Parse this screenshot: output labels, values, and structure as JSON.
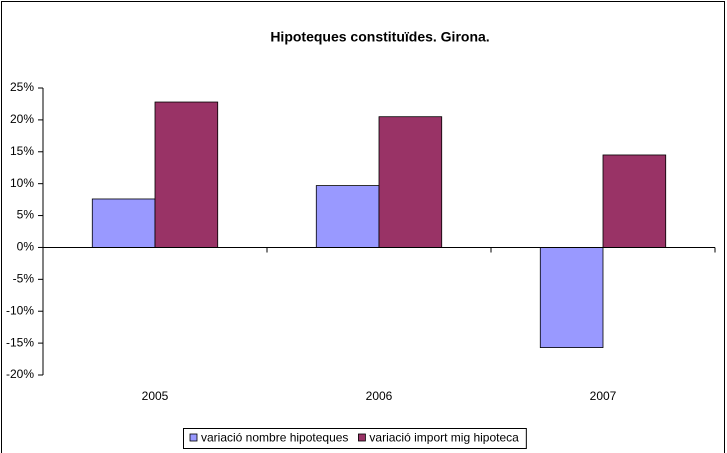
{
  "chart_data": {
    "type": "bar",
    "title": "Hipoteques constituïdes. Girona.",
    "categories": [
      "2005",
      "2006",
      "2007"
    ],
    "series": [
      {
        "name": "variació nombre hipoteques",
        "color": "#9999ff",
        "values": [
          7.6,
          9.7,
          -15.7
        ]
      },
      {
        "name": "variació import mig hipoteca",
        "color": "#993366",
        "values": [
          22.8,
          20.5,
          14.5
        ]
      }
    ],
    "ylim": [
      -20,
      25
    ],
    "yticks": [
      {
        "value": -20,
        "label": "-20%"
      },
      {
        "value": -15,
        "label": "-15%"
      },
      {
        "value": -10,
        "label": "-10%"
      },
      {
        "value": -5,
        "label": "-5%"
      },
      {
        "value": 0,
        "label": "0%"
      },
      {
        "value": 5,
        "label": "5%"
      },
      {
        "value": 10,
        "label": "10%"
      },
      {
        "value": 15,
        "label": "15%"
      },
      {
        "value": 20,
        "label": "20%"
      },
      {
        "value": 25,
        "label": "25%"
      }
    ],
    "legend": "bottom"
  }
}
